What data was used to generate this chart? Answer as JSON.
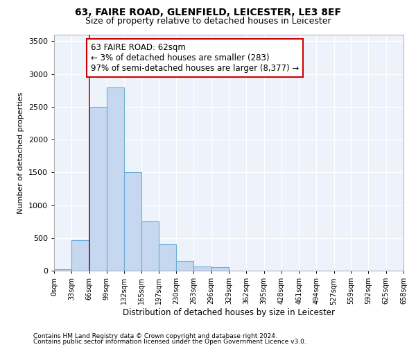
{
  "title_line1": "63, FAIRE ROAD, GLENFIELD, LEICESTER, LE3 8EF",
  "title_line2": "Size of property relative to detached houses in Leicester",
  "xlabel": "Distribution of detached houses by size in Leicester",
  "ylabel": "Number of detached properties",
  "bar_color": "#c5d8f0",
  "bar_edge_color": "#6aacd8",
  "background_color": "#eef3fb",
  "grid_color": "#ffffff",
  "annotation_text": "63 FAIRE ROAD: 62sqm\n← 3% of detached houses are smaller (283)\n97% of semi-detached houses are larger (8,377) →",
  "property_line_x": 66,
  "footer_line1": "Contains HM Land Registry data © Crown copyright and database right 2024.",
  "footer_line2": "Contains public sector information licensed under the Open Government Licence v3.0.",
  "bin_edges": [
    0,
    33,
    66,
    99,
    132,
    165,
    197,
    230,
    263,
    296,
    329,
    362,
    395,
    428,
    461,
    494,
    527,
    559,
    592,
    625,
    658
  ],
  "bin_labels": [
    "0sqm",
    "33sqm",
    "66sqm",
    "99sqm",
    "132sqm",
    "165sqm",
    "197sqm",
    "230sqm",
    "263sqm",
    "296sqm",
    "329sqm",
    "362sqm",
    "395sqm",
    "428sqm",
    "461sqm",
    "494sqm",
    "527sqm",
    "559sqm",
    "592sqm",
    "625sqm",
    "658sqm"
  ],
  "bar_heights": [
    25,
    470,
    2500,
    2800,
    1500,
    750,
    400,
    150,
    60,
    50,
    0,
    0,
    0,
    0,
    0,
    0,
    0,
    0,
    0,
    0
  ],
  "ylim": [
    0,
    3600
  ],
  "yticks": [
    0,
    500,
    1000,
    1500,
    2000,
    2500,
    3000,
    3500
  ]
}
